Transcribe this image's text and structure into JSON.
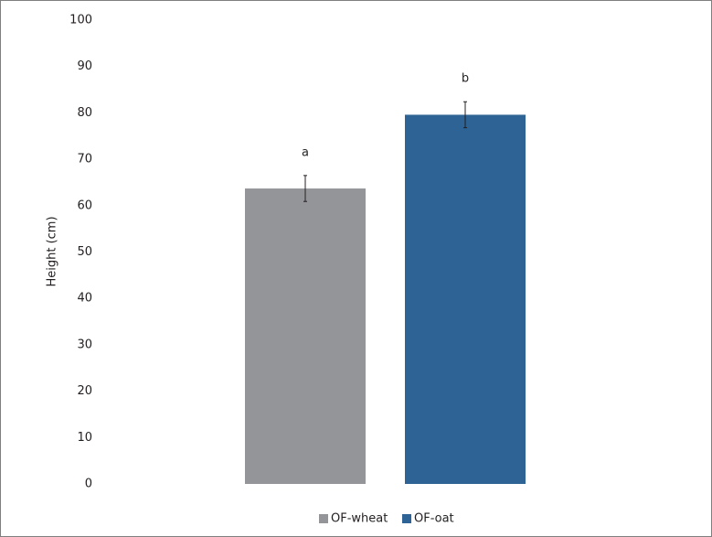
{
  "chart_data": {
    "type": "bar",
    "y_label": "Height (cm)",
    "series": [
      {
        "name": "OF-wheat",
        "color": "#939598",
        "values": [
          63.7
        ],
        "errors": [
          2.8
        ],
        "value_labels": [
          "a"
        ]
      },
      {
        "name": "OF-oat",
        "color": "#2e6395",
        "values": [
          79.6
        ],
        "errors": [
          2.8
        ],
        "value_labels": [
          "b"
        ]
      }
    ],
    "ylim": [
      0,
      100
    ],
    "yticks": [
      0,
      10,
      20,
      30,
      40,
      50,
      60,
      70,
      80,
      90,
      100
    ],
    "grid": false,
    "legend": "bottom"
  }
}
